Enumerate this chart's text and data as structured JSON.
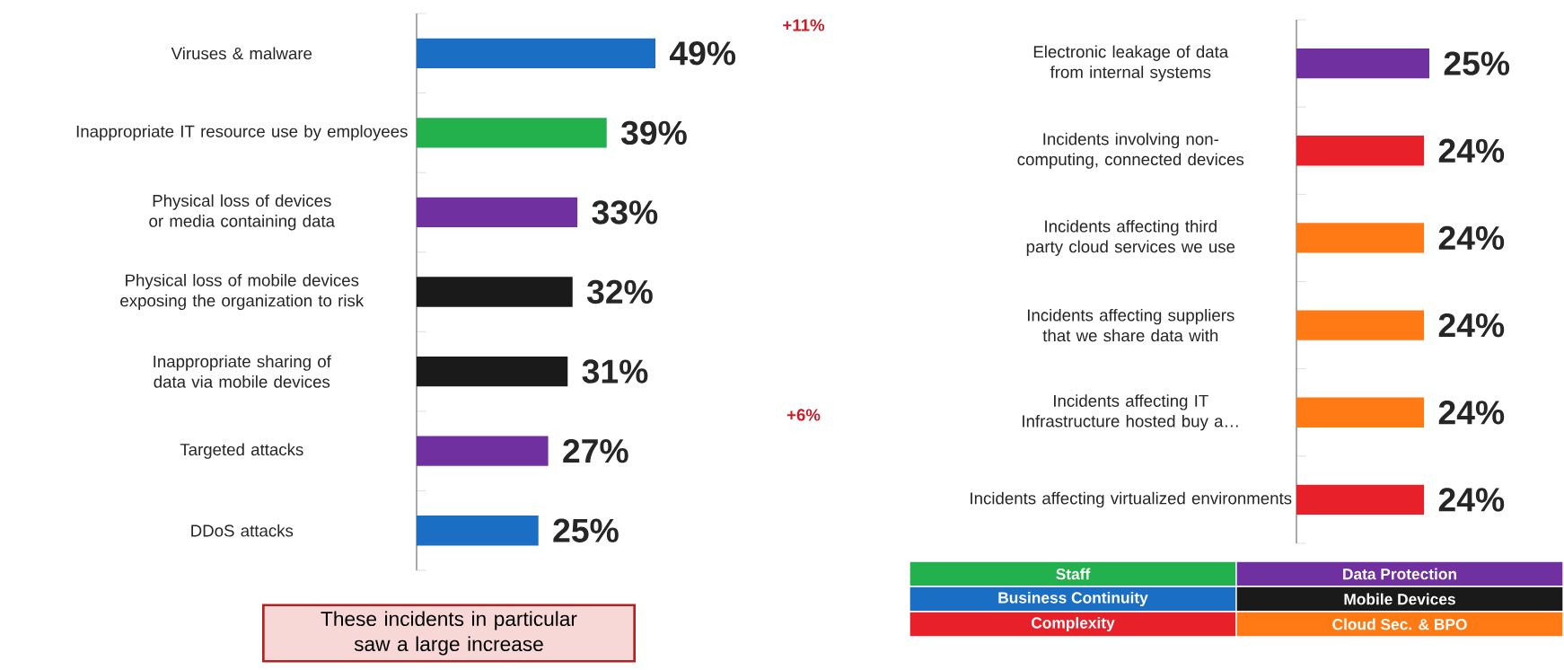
{
  "chart_data": [
    {
      "type": "bar",
      "orientation": "horizontal",
      "tick_labels": "y",
      "categories": [
        "Viruses & malware",
        "Inappropriate IT resource use by employees",
        "Physical loss of devices or media containing data",
        "Physical loss of mobile devices exposing the organization to risk",
        "Inappropriate sharing of data via mobile devices",
        "Targeted attacks",
        "DDoS attacks"
      ],
      "series": [
        {
          "name": "Staff",
          "color": "#22b14c",
          "values": [
            null,
            39,
            null,
            null,
            null,
            null,
            null
          ],
          "value_labels": [
            null,
            "39%",
            null,
            null,
            null,
            null,
            null
          ]
        },
        {
          "name": "Data Protection",
          "color": "#7030a0",
          "values": [
            null,
            null,
            33,
            null,
            null,
            27,
            null
          ],
          "value_labels": [
            null,
            null,
            "33%",
            null,
            null,
            "27%",
            null
          ]
        },
        {
          "name": "Business Continuity",
          "color": "#1a6fc4",
          "values": [
            49,
            null,
            null,
            null,
            null,
            null,
            25
          ],
          "value_labels": [
            "49%",
            null,
            null,
            null,
            null,
            null,
            "25%"
          ]
        },
        {
          "name": "Mobile Devices",
          "color": "#1a1a1a",
          "values": [
            null,
            null,
            null,
            32,
            31,
            null,
            null
          ],
          "value_labels": [
            null,
            null,
            null,
            "32%",
            "31%",
            null,
            null
          ]
        }
      ],
      "annotations": [
        "+11%",
        "+6%",
        "These incidents in particular saw a large increase"
      ]
    },
    {
      "type": "bar",
      "orientation": "horizontal",
      "tick_labels": "y",
      "legend": "bottom",
      "categories": [
        "Electronic leakage of data from internal systems",
        "Incidents involving non-computing, connected devices",
        "Incidents affecting third party cloud services we use",
        "Incidents affecting suppliers that we share data with",
        "Incidents affecting IT Infrastructure hosted buy a…",
        "Incidents affecting virtualized environments"
      ],
      "series": [
        {
          "color": "#7030a0",
          "values": [
            25,
            null,
            null,
            null,
            null,
            null
          ],
          "value_labels": [
            "25%",
            null,
            null,
            null,
            null,
            null
          ]
        },
        {
          "name": "Complexity",
          "color": "#e8202a",
          "values": [
            null,
            24,
            null,
            null,
            null,
            24
          ],
          "value_labels": [
            null,
            "24%",
            null,
            null,
            null,
            "24%"
          ]
        },
        {
          "name": "Cloud Sec. & BPO",
          "color": "#ff7a14",
          "values": [
            null,
            null,
            24,
            24,
            24,
            null
          ],
          "value_labels": [
            null,
            null,
            "24%",
            "24%",
            "24%",
            null
          ]
        }
      ]
    }
  ]
}
